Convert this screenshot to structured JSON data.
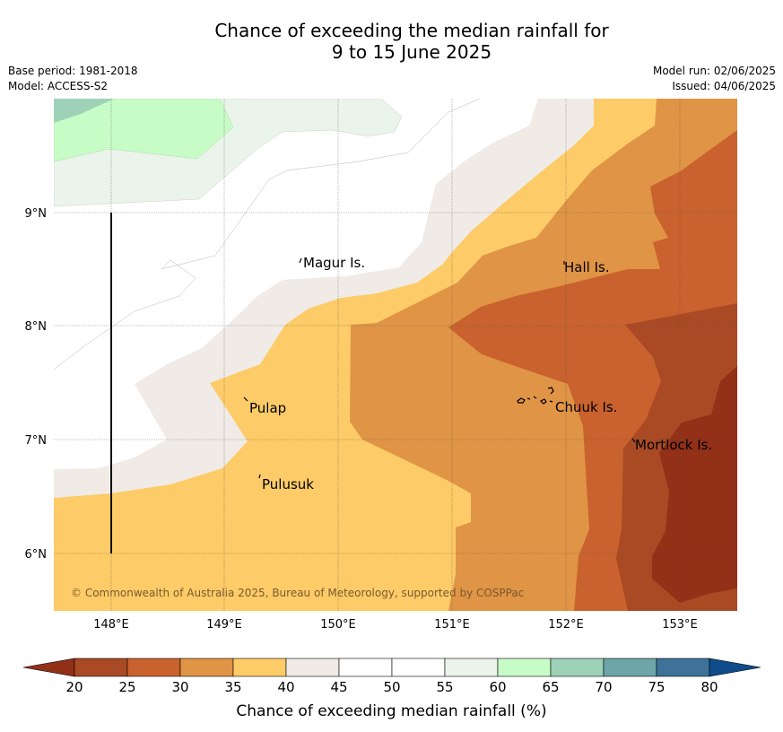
{
  "title": {
    "line1": "Chance of exceeding the median rainfall for",
    "line2": "9 to 15 June 2025"
  },
  "meta": {
    "base_period": "Base period: 1981-2018",
    "model": "Model: ACCESS-S2",
    "model_run": "Model run: 02/06/2025",
    "issued": "Issued: 04/06/2025"
  },
  "map": {
    "lat_labels": [
      "9°N",
      "8°N",
      "7°N",
      "6°N"
    ],
    "lon_labels": [
      "148°E",
      "149°E",
      "150°E",
      "151°E",
      "152°E",
      "153°E"
    ],
    "places": [
      "Magur Is.",
      "Hall Is.",
      "Pulap",
      "Chuuk Is.",
      "Mortlock Is.",
      "Pulusuk"
    ],
    "copyright": "© Commonwealth of Australia 2025, Bureau of Meteorology, supported by COSPPac"
  },
  "colorbar": {
    "ticks": [
      "20",
      "25",
      "30",
      "35",
      "40",
      "45",
      "50",
      "55",
      "60",
      "65",
      "70",
      "75",
      "80"
    ],
    "colors": [
      "#a94a24",
      "#c9622e",
      "#e09445",
      "#fdcb67",
      "#f0ebe6",
      "#ffffff",
      "#ffffff",
      "#eaf4ea",
      "#c7fcc7",
      "#9dd2b9",
      "#6ea5a8",
      "#3e7298"
    ],
    "under_color": "#923018",
    "over_color": "#0f4c8c",
    "label": "Chance of exceeding median rainfall (%)"
  }
}
